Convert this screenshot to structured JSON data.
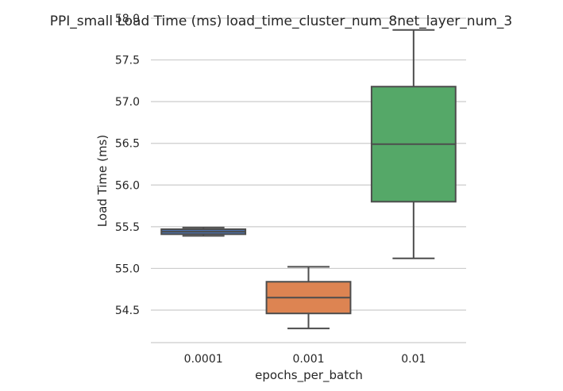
{
  "chart_data": {
    "type": "box",
    "title": "PPI_small Load Time (ms) load_time_cluster_num_8net_layer_num_3",
    "xlabel": "epochs_per_batch",
    "ylabel": "Load Time (ms)",
    "categories": [
      "0.0001",
      "0.001",
      "0.01"
    ],
    "yticks": [
      "54.5",
      "55.0",
      "55.5",
      "56.0",
      "56.5",
      "57.0",
      "57.5",
      "58.0"
    ],
    "ylim": [
      54.1,
      58.0
    ],
    "grid": true,
    "boxes": [
      {
        "category": "0.0001",
        "whisker_low": 55.39,
        "q1": 55.41,
        "median": 55.44,
        "q3": 55.47,
        "whisker_high": 55.49,
        "color": "#4c72b0"
      },
      {
        "category": "0.001",
        "whisker_low": 54.28,
        "q1": 54.46,
        "median": 54.65,
        "q3": 54.84,
        "whisker_high": 55.02,
        "color": "#dd8452"
      },
      {
        "category": "0.01",
        "whisker_low": 55.12,
        "q1": 55.8,
        "median": 56.49,
        "q3": 57.18,
        "whisker_high": 57.86,
        "color": "#55a868"
      }
    ],
    "line_color": "#4d4d4d"
  }
}
